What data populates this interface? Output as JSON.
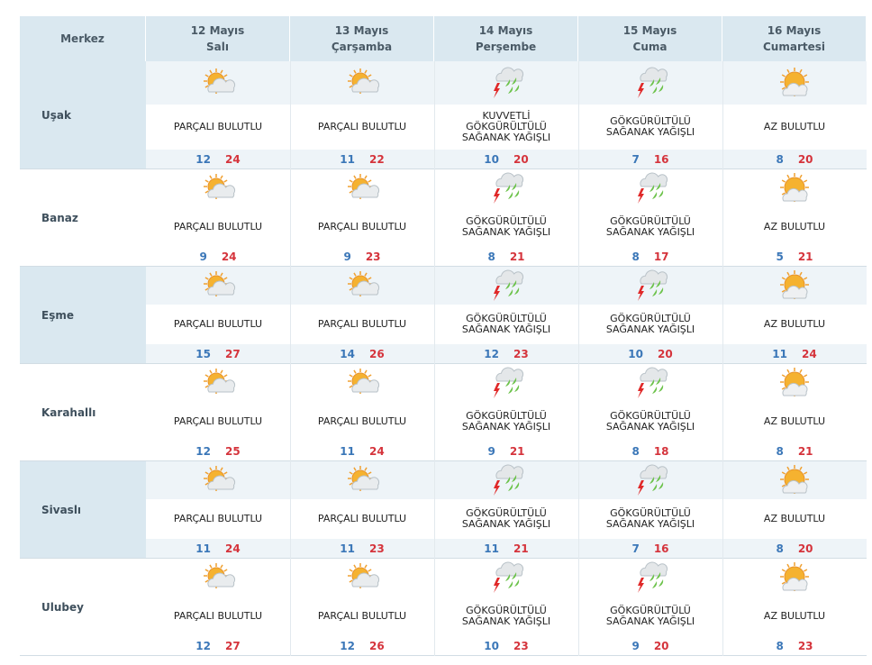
{
  "header": {
    "corner": "Merkez",
    "days": [
      {
        "date": "12 Mayıs",
        "weekday": "Salı"
      },
      {
        "date": "13 Mayıs",
        "weekday": "Çarşamba"
      },
      {
        "date": "14 Mayıs",
        "weekday": "Perşembe"
      },
      {
        "date": "15 Mayıs",
        "weekday": "Cuma"
      },
      {
        "date": "16 Mayıs",
        "weekday": "Cumartesi"
      }
    ]
  },
  "rows": [
    {
      "name": "Uşak",
      "cells": [
        {
          "condition": [
            "PARÇALI BULUTLU"
          ],
          "min": 12,
          "max": 24
        },
        {
          "condition": [
            "PARÇALI BULUTLU"
          ],
          "min": 11,
          "max": 22
        },
        {
          "condition": [
            "KUVVETLİ",
            "GÖKGÜRÜLTÜLÜ",
            "SAĞANAK YAĞIŞLI"
          ],
          "min": 10,
          "max": 20
        },
        {
          "condition": [
            "GÖKGÜRÜLTÜLÜ",
            "SAĞANAK YAĞIŞLI"
          ],
          "min": 7,
          "max": 16
        },
        {
          "condition": [
            "AZ BULUTLU"
          ],
          "min": 8,
          "max": 20
        }
      ]
    },
    {
      "name": "Banaz",
      "cells": [
        {
          "condition": [
            "PARÇALI BULUTLU"
          ],
          "min": 9,
          "max": 24
        },
        {
          "condition": [
            "PARÇALI BULUTLU"
          ],
          "min": 9,
          "max": 23
        },
        {
          "condition": [
            "GÖKGÜRÜLTÜLÜ",
            "SAĞANAK YAĞIŞLI"
          ],
          "min": 8,
          "max": 21
        },
        {
          "condition": [
            "GÖKGÜRÜLTÜLÜ",
            "SAĞANAK YAĞIŞLI"
          ],
          "min": 8,
          "max": 17
        },
        {
          "condition": [
            "AZ BULUTLU"
          ],
          "min": 5,
          "max": 21
        }
      ]
    },
    {
      "name": "Eşme",
      "cells": [
        {
          "condition": [
            "PARÇALI BULUTLU"
          ],
          "min": 15,
          "max": 27
        },
        {
          "condition": [
            "PARÇALI BULUTLU"
          ],
          "min": 14,
          "max": 26
        },
        {
          "condition": [
            "GÖKGÜRÜLTÜLÜ",
            "SAĞANAK YAĞIŞLI"
          ],
          "min": 12,
          "max": 23
        },
        {
          "condition": [
            "GÖKGÜRÜLTÜLÜ",
            "SAĞANAK YAĞIŞLI"
          ],
          "min": 10,
          "max": 20
        },
        {
          "condition": [
            "AZ BULUTLU"
          ],
          "min": 11,
          "max": 24
        }
      ]
    },
    {
      "name": "Karahallı",
      "cells": [
        {
          "condition": [
            "PARÇALI BULUTLU"
          ],
          "min": 12,
          "max": 25
        },
        {
          "condition": [
            "PARÇALI BULUTLU"
          ],
          "min": 11,
          "max": 24
        },
        {
          "condition": [
            "GÖKGÜRÜLTÜLÜ",
            "SAĞANAK YAĞIŞLI"
          ],
          "min": 9,
          "max": 21
        },
        {
          "condition": [
            "GÖKGÜRÜLTÜLÜ",
            "SAĞANAK YAĞIŞLI"
          ],
          "min": 8,
          "max": 18
        },
        {
          "condition": [
            "AZ BULUTLU"
          ],
          "min": 8,
          "max": 21
        }
      ]
    },
    {
      "name": "Sivaslı",
      "cells": [
        {
          "condition": [
            "PARÇALI BULUTLU"
          ],
          "min": 11,
          "max": 24
        },
        {
          "condition": [
            "PARÇALI BULUTLU"
          ],
          "min": 11,
          "max": 23
        },
        {
          "condition": [
            "GÖKGÜRÜLTÜLÜ",
            "SAĞANAK YAĞIŞLI"
          ],
          "min": 11,
          "max": 21
        },
        {
          "condition": [
            "GÖKGÜRÜLTÜLÜ",
            "SAĞANAK YAĞIŞLI"
          ],
          "min": 7,
          "max": 16
        },
        {
          "condition": [
            "AZ BULUTLU"
          ],
          "min": 8,
          "max": 20
        }
      ]
    },
    {
      "name": "Ulubey",
      "cells": [
        {
          "condition": [
            "PARÇALI BULUTLU"
          ],
          "min": 12,
          "max": 27
        },
        {
          "condition": [
            "PARÇALI BULUTLU"
          ],
          "min": 12,
          "max": 26
        },
        {
          "condition": [
            "GÖKGÜRÜLTÜLÜ",
            "SAĞANAK YAĞIŞLI"
          ],
          "min": 10,
          "max": 23
        },
        {
          "condition": [
            "GÖKGÜRÜLTÜLÜ",
            "SAĞANAK YAĞIŞLI"
          ],
          "min": 9,
          "max": 20
        },
        {
          "condition": [
            "AZ BULUTLU"
          ],
          "min": 8,
          "max": 23
        }
      ]
    }
  ]
}
